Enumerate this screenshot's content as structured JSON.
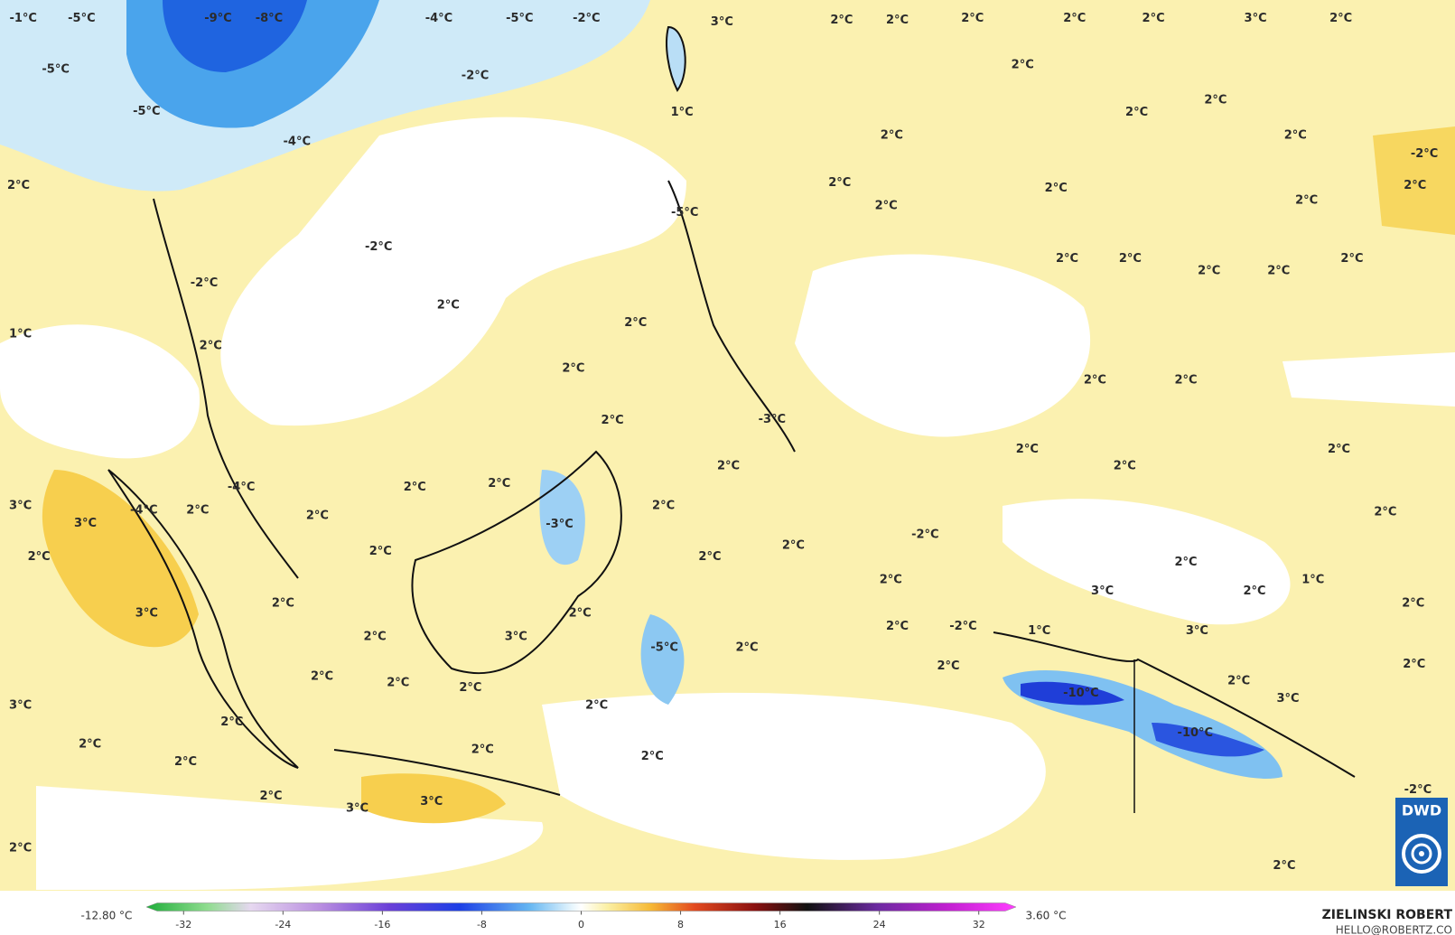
{
  "map": {
    "labels": [
      "-1°C",
      "-5°C",
      "-9°C",
      "-8°C",
      "-4°C",
      "-5°C",
      "-2°C",
      "3°C",
      "2°C",
      "2°C",
      "2°C",
      "2°C",
      "2°C",
      "3°C",
      "2°C",
      "-5°C",
      "-5°C",
      "-2°C",
      "-4°C",
      "1°C",
      "2°C",
      "2°C",
      "2°C",
      "2°C",
      "2°C",
      "2°C",
      "2°C",
      "2°C",
      "2°C",
      "-2°C",
      "2°C",
      "-5°C",
      "2°C",
      "-2°C",
      "2°C",
      "2°C",
      "2°C",
      "2°C",
      "2°C",
      "-2°C",
      "2°C",
      "2°C",
      "1°C",
      "2°C",
      "2°C",
      "2°C",
      "2°C",
      "-3°C",
      "2°C",
      "2°C",
      "2°C",
      "2°C",
      "2°C",
      "-4°C",
      "2°C",
      "2°C",
      "3°C",
      "-4°C",
      "2°C",
      "-3°C",
      "2°C",
      "2°C",
      "2°C",
      "3°C",
      "-2°C",
      "2°C",
      "2°C",
      "2°C",
      "2°C",
      "2°C",
      "1°C",
      "2°C",
      "3°C",
      "2°C",
      "2°C",
      "3°C",
      "2°C",
      "2°C",
      "-2°C",
      "2°C",
      "1°C",
      "3°C",
      "3°C",
      "2°C",
      "-5°C",
      "2°C",
      "2°C",
      "2°C",
      "2°C",
      "2°C",
      "2°C",
      "-10°C",
      "2°C",
      "3°C",
      "3°C",
      "2°C",
      "2°C",
      "-10°C",
      "2°C",
      "2°C",
      "2°C",
      "2°C",
      "2°C",
      "3°C",
      "3°C",
      "-2°C",
      "2°C",
      "2°C"
    ],
    "colorbar": {
      "min_label": "-12.80 °C",
      "max_label": "3.60 °C",
      "lim": [
        -35,
        35
      ],
      "ticks": [
        -32,
        -24,
        -16,
        -8,
        0,
        8,
        16,
        24,
        32
      ]
    },
    "credit": {
      "name": "ZIELINSKI ROBERT",
      "email": "HELLO@ROBERTZ.CO",
      "logo": "DWD"
    }
  }
}
